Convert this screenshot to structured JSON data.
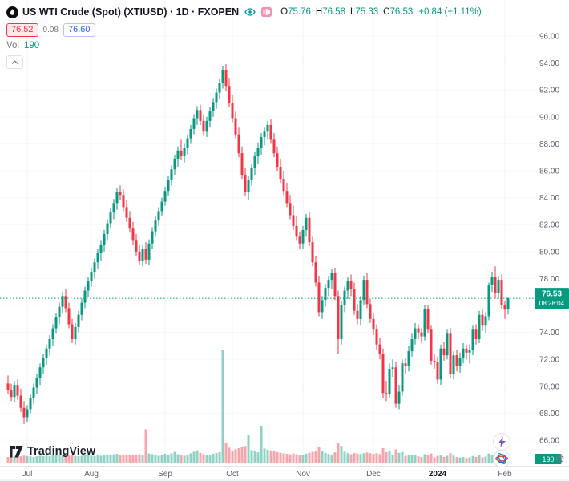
{
  "header": {
    "title": "US WTI Crude (Spot) (XTIUSD) · 1D · FXOPEN",
    "ohlc": {
      "o_label": "O",
      "o": "75.76",
      "h_label": "H",
      "h": "76.58",
      "l_label": "L",
      "l": "75.33",
      "c_label": "C",
      "c": "76.53"
    },
    "change": "+0.84 (+1.11%)",
    "bid": "76.52",
    "spread": "0.08",
    "ask": "76.60",
    "vol_label": "Vol",
    "vol_value": "190"
  },
  "footer": {
    "logo_text": "TradingView"
  },
  "colors": {
    "up": "#089981",
    "down": "#f23645",
    "up_vol": "rgba(8,153,129,0.45)",
    "down_vol": "rgba(242,54,69,0.45)",
    "grid": "#f0f3fa",
    "hgrid": "#f6f8fb",
    "axis_line": "#e0e3eb",
    "axis_text": "#5d606b",
    "badge": "#089981",
    "accent_blue": "#2962ff"
  },
  "chart_data": {
    "type": "candlestick",
    "symbol": "US WTI Crude (Spot) (XTIUSD)",
    "interval": "1D",
    "exchange": "FXOPEN",
    "y_axis": {
      "min": 66,
      "max": 96,
      "tick_step": 2,
      "ticks": [
        "96.00",
        "94.00",
        "92.00",
        "90.00",
        "88.00",
        "86.00",
        "84.00",
        "82.00",
        "80.00",
        "78.00",
        "76.00",
        "74.00",
        "72.00",
        "70.00",
        "68.00",
        "66.00"
      ]
    },
    "x_axis": {
      "labels": [
        {
          "text": "Jul",
          "index": 6,
          "bold": false
        },
        {
          "text": "Aug",
          "index": 26,
          "bold": false
        },
        {
          "text": "Sep",
          "index": 49,
          "bold": false
        },
        {
          "text": "Oct",
          "index": 70,
          "bold": false
        },
        {
          "text": "Nov",
          "index": 92,
          "bold": false
        },
        {
          "text": "Dec",
          "index": 114,
          "bold": false
        },
        {
          "text": "2024",
          "index": 134,
          "bold": true
        },
        {
          "text": "Feb",
          "index": 155,
          "bold": false
        }
      ]
    },
    "last": {
      "price": "76.53",
      "countdown": "08:28:04",
      "volume": "190"
    },
    "candles": [
      [
        70.2,
        70.8,
        69.4,
        69.7,
        320
      ],
      [
        69.7,
        70.2,
        68.9,
        69.2,
        300
      ],
      [
        69.2,
        70.4,
        68.8,
        70.1,
        340
      ],
      [
        70.1,
        70.5,
        69.0,
        69.3,
        310
      ],
      [
        69.3,
        69.8,
        68.1,
        68.4,
        360
      ],
      [
        68.4,
        68.9,
        67.2,
        67.7,
        400
      ],
      [
        67.7,
        68.6,
        67.3,
        68.3,
        380
      ],
      [
        68.3,
        69.4,
        67.9,
        69.1,
        350
      ],
      [
        69.1,
        70.2,
        68.7,
        69.9,
        330
      ],
      [
        69.9,
        70.9,
        69.4,
        70.6,
        360
      ],
      [
        70.6,
        71.7,
        70.1,
        71.4,
        390
      ],
      [
        71.4,
        72.4,
        70.9,
        72.1,
        370
      ],
      [
        72.1,
        73.1,
        71.6,
        72.8,
        400
      ],
      [
        72.8,
        73.8,
        72.3,
        73.5,
        380
      ],
      [
        73.5,
        74.6,
        73.0,
        74.3,
        420
      ],
      [
        74.3,
        75.4,
        73.9,
        75.1,
        440
      ],
      [
        75.1,
        76.2,
        74.6,
        75.9,
        410
      ],
      [
        75.9,
        77.0,
        75.4,
        76.7,
        450
      ],
      [
        76.7,
        77.2,
        75.5,
        75.8,
        430
      ],
      [
        75.8,
        76.2,
        74.3,
        74.6,
        400
      ],
      [
        74.6,
        75.0,
        73.2,
        73.5,
        420
      ],
      [
        73.5,
        74.7,
        73.1,
        74.4,
        380
      ],
      [
        74.4,
        75.6,
        74.0,
        75.3,
        360
      ],
      [
        75.3,
        76.5,
        74.9,
        76.2,
        390
      ],
      [
        76.2,
        77.4,
        75.8,
        77.1,
        410
      ],
      [
        77.1,
        78.1,
        76.6,
        77.8,
        430
      ],
      [
        77.8,
        78.8,
        77.4,
        78.5,
        400
      ],
      [
        78.5,
        79.5,
        78.0,
        79.2,
        380
      ],
      [
        79.2,
        80.2,
        78.7,
        79.9,
        420
      ],
      [
        79.9,
        80.8,
        79.3,
        80.5,
        390
      ],
      [
        80.5,
        81.6,
        80.0,
        81.3,
        440
      ],
      [
        81.3,
        82.4,
        80.8,
        82.1,
        460
      ],
      [
        82.1,
        83.2,
        81.7,
        82.9,
        430
      ],
      [
        82.9,
        83.9,
        82.4,
        83.6,
        470
      ],
      [
        83.6,
        84.7,
        83.1,
        84.4,
        500
      ],
      [
        84.4,
        84.9,
        83.8,
        84.2,
        420
      ],
      [
        84.2,
        84.6,
        83.0,
        83.3,
        450
      ],
      [
        83.3,
        83.8,
        82.2,
        82.5,
        430
      ],
      [
        82.5,
        83.0,
        81.4,
        81.7,
        460
      ],
      [
        81.7,
        82.2,
        80.5,
        80.8,
        440
      ],
      [
        80.8,
        81.3,
        79.7,
        80.0,
        410
      ],
      [
        80.0,
        80.5,
        79.0,
        79.3,
        480
      ],
      [
        79.3,
        80.5,
        78.9,
        80.2,
        420
      ],
      [
        80.2,
        80.7,
        79.1,
        79.4,
        1900
      ],
      [
        79.4,
        80.9,
        79.0,
        80.6,
        520
      ],
      [
        80.6,
        81.8,
        80.2,
        81.5,
        480
      ],
      [
        81.5,
        82.6,
        81.1,
        82.3,
        430
      ],
      [
        82.3,
        83.3,
        81.9,
        83.0,
        390
      ],
      [
        83.0,
        84.0,
        82.6,
        83.7,
        450
      ],
      [
        83.7,
        84.8,
        83.4,
        84.5,
        500
      ],
      [
        84.5,
        85.6,
        84.1,
        85.3,
        460
      ],
      [
        85.3,
        86.4,
        84.9,
        86.1,
        520
      ],
      [
        86.1,
        87.2,
        85.7,
        86.9,
        610
      ],
      [
        86.9,
        87.8,
        86.3,
        87.5,
        480
      ],
      [
        87.5,
        88.3,
        86.8,
        87.1,
        430
      ],
      [
        87.1,
        88.0,
        86.6,
        87.7,
        390
      ],
      [
        87.7,
        88.7,
        87.2,
        88.4,
        450
      ],
      [
        88.4,
        89.4,
        88.0,
        89.1,
        530
      ],
      [
        89.1,
        90.2,
        88.7,
        89.9,
        620
      ],
      [
        89.9,
        90.8,
        89.4,
        90.5,
        700
      ],
      [
        90.5,
        90.9,
        89.4,
        89.7,
        560
      ],
      [
        89.7,
        90.2,
        88.6,
        88.9,
        480
      ],
      [
        88.9,
        90.0,
        88.5,
        89.7,
        420
      ],
      [
        89.7,
        90.7,
        89.2,
        90.4,
        460
      ],
      [
        90.4,
        91.4,
        90.0,
        91.1,
        510
      ],
      [
        91.1,
        92.1,
        90.6,
        91.8,
        550
      ],
      [
        91.8,
        92.8,
        91.3,
        92.5,
        600
      ],
      [
        92.5,
        93.8,
        92.1,
        93.5,
        6400
      ],
      [
        93.5,
        93.9,
        91.9,
        92.3,
        1150
      ],
      [
        92.3,
        92.9,
        90.7,
        91.0,
        850
      ],
      [
        91.0,
        91.6,
        89.6,
        89.9,
        700
      ],
      [
        89.9,
        90.4,
        88.4,
        88.7,
        760
      ],
      [
        88.7,
        89.2,
        87.0,
        87.3,
        820
      ],
      [
        87.3,
        87.8,
        85.4,
        85.7,
        880
      ],
      [
        85.7,
        86.2,
        84.1,
        84.4,
        950
      ],
      [
        84.4,
        85.6,
        83.8,
        85.3,
        1600
      ],
      [
        85.3,
        86.5,
        84.9,
        86.2,
        720
      ],
      [
        86.2,
        87.4,
        85.7,
        87.1,
        650
      ],
      [
        87.1,
        88.1,
        86.5,
        87.7,
        590
      ],
      [
        87.7,
        88.8,
        87.2,
        88.5,
        2100
      ],
      [
        88.5,
        89.2,
        87.9,
        88.9,
        800
      ],
      [
        88.9,
        89.7,
        88.3,
        89.4,
        740
      ],
      [
        89.4,
        89.8,
        88.0,
        88.3,
        690
      ],
      [
        88.3,
        88.8,
        87.0,
        87.3,
        640
      ],
      [
        87.3,
        87.8,
        86.0,
        86.3,
        600
      ],
      [
        86.3,
        86.9,
        85.1,
        85.4,
        560
      ],
      [
        85.4,
        86.0,
        84.2,
        84.5,
        530
      ],
      [
        84.5,
        85.1,
        83.3,
        83.6,
        500
      ],
      [
        83.6,
        84.2,
        82.4,
        82.7,
        470
      ],
      [
        82.7,
        83.4,
        81.6,
        81.9,
        520
      ],
      [
        81.9,
        82.6,
        80.8,
        81.1,
        480
      ],
      [
        81.1,
        81.5,
        80.2,
        80.6,
        440
      ],
      [
        80.6,
        81.9,
        80.2,
        81.6,
        460
      ],
      [
        81.6,
        82.8,
        81.1,
        82.5,
        500
      ],
      [
        82.5,
        82.9,
        80.4,
        80.7,
        560
      ],
      [
        80.7,
        81.1,
        78.9,
        79.2,
        610
      ],
      [
        79.2,
        79.7,
        77.4,
        77.7,
        670
      ],
      [
        77.7,
        78.2,
        75.2,
        75.5,
        900
      ],
      [
        75.5,
        76.7,
        75.0,
        76.4,
        640
      ],
      [
        76.4,
        77.6,
        75.9,
        77.3,
        560
      ],
      [
        77.3,
        78.2,
        76.7,
        77.9,
        500
      ],
      [
        77.9,
        78.7,
        77.2,
        78.4,
        460
      ],
      [
        78.4,
        78.8,
        76.4,
        76.7,
        590
      ],
      [
        76.7,
        77.1,
        72.4,
        73.5,
        1100
      ],
      [
        73.5,
        76.3,
        73.1,
        76.0,
        950
      ],
      [
        76.0,
        77.4,
        75.5,
        77.1,
        620
      ],
      [
        77.1,
        78.1,
        76.5,
        77.8,
        540
      ],
      [
        77.8,
        78.3,
        76.7,
        77.2,
        480
      ],
      [
        77.2,
        77.7,
        75.3,
        75.6,
        550
      ],
      [
        75.6,
        76.1,
        74.6,
        75.0,
        520
      ],
      [
        75.0,
        76.7,
        74.5,
        76.4,
        490
      ],
      [
        76.4,
        78.2,
        76.0,
        77.9,
        530
      ],
      [
        77.9,
        78.4,
        75.8,
        76.1,
        580
      ],
      [
        76.1,
        76.5,
        74.7,
        75.0,
        540
      ],
      [
        75.0,
        75.4,
        73.8,
        74.2,
        500
      ],
      [
        74.2,
        74.6,
        72.7,
        73.1,
        530
      ],
      [
        73.1,
        73.6,
        72.0,
        72.4,
        490
      ],
      [
        72.4,
        72.8,
        69.1,
        69.5,
        820
      ],
      [
        69.5,
        70.4,
        68.9,
        69.4,
        600
      ],
      [
        69.4,
        71.7,
        69.1,
        71.3,
        680
      ],
      [
        71.3,
        72.0,
        70.7,
        71.4,
        430
      ],
      [
        71.4,
        71.8,
        68.4,
        68.7,
        750
      ],
      [
        68.7,
        70.1,
        68.3,
        69.6,
        560
      ],
      [
        69.6,
        72.0,
        69.3,
        71.7,
        610
      ],
      [
        71.7,
        72.1,
        70.9,
        71.5,
        380
      ],
      [
        71.5,
        73.0,
        71.1,
        72.6,
        420
      ],
      [
        72.6,
        73.9,
        72.2,
        73.5,
        450
      ],
      [
        73.5,
        74.7,
        73.1,
        74.3,
        410
      ],
      [
        74.3,
        74.6,
        73.5,
        74.0,
        350
      ],
      [
        74.0,
        74.3,
        73.2,
        73.7,
        320
      ],
      [
        73.7,
        76.0,
        73.4,
        75.7,
        480
      ],
      [
        75.7,
        76.0,
        73.9,
        74.2,
        440
      ],
      [
        74.2,
        74.5,
        71.6,
        71.9,
        520
      ],
      [
        71.9,
        72.4,
        71.3,
        71.8,
        300
      ],
      [
        71.8,
        72.2,
        70.2,
        70.5,
        380
      ],
      [
        70.5,
        73.1,
        70.1,
        72.8,
        420
      ],
      [
        72.8,
        73.3,
        71.9,
        72.3,
        330
      ],
      [
        72.3,
        74.2,
        72.0,
        73.9,
        390
      ],
      [
        73.9,
        74.3,
        70.6,
        70.9,
        540
      ],
      [
        70.9,
        72.6,
        70.5,
        72.3,
        400
      ],
      [
        72.3,
        72.7,
        71.1,
        71.5,
        310
      ],
      [
        71.5,
        72.5,
        71.0,
        72.1,
        290
      ],
      [
        72.1,
        73.2,
        71.7,
        72.8,
        320
      ],
      [
        72.8,
        73.1,
        72.0,
        72.5,
        270
      ],
      [
        72.5,
        73.1,
        71.7,
        72.7,
        300
      ],
      [
        72.7,
        74.5,
        72.3,
        74.2,
        380
      ],
      [
        74.2,
        74.6,
        73.1,
        73.5,
        330
      ],
      [
        73.5,
        75.6,
        73.2,
        75.3,
        410
      ],
      [
        75.3,
        75.7,
        74.1,
        74.5,
        300
      ],
      [
        74.5,
        75.5,
        74.0,
        75.2,
        340
      ],
      [
        75.2,
        77.7,
        74.9,
        77.5,
        520
      ],
      [
        77.5,
        78.5,
        77.0,
        78.1,
        430
      ],
      [
        78.1,
        78.9,
        76.5,
        76.9,
        460
      ],
      [
        76.9,
        78.2,
        76.5,
        77.9,
        370
      ],
      [
        77.9,
        78.3,
        75.7,
        76.0,
        400
      ],
      [
        76.0,
        76.3,
        75.0,
        75.69,
        350
      ],
      [
        75.76,
        76.58,
        75.33,
        76.53,
        190
      ]
    ]
  }
}
